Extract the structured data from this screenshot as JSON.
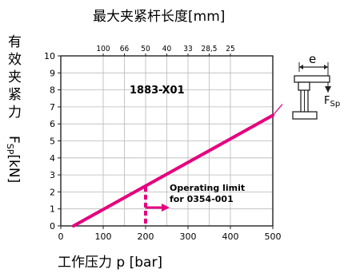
{
  "chart_data": {
    "type": "line",
    "title": "1883-X01",
    "top_axis_label": "最大夹紧杆长度[mm]",
    "xlabel": "工作压力 p [bar]",
    "ylabel_chars": [
      "有",
      "效",
      "夹",
      "紧",
      "力"
    ],
    "ylabel_tail": "F",
    "ylabel_sub": "SP",
    "ylabel_unit": "[kN]",
    "xlim": [
      0,
      500
    ],
    "ylim": [
      0,
      10
    ],
    "x_ticks": [
      "0",
      "100",
      "200",
      "300",
      "400",
      "500"
    ],
    "y_ticks": [
      "0",
      "1",
      "2",
      "3",
      "4",
      "5",
      "6",
      "7",
      "8",
      "9",
      "10"
    ],
    "top_ticks": [
      "100",
      "66",
      "50",
      "40",
      "33",
      "28,5",
      "25"
    ],
    "top_tick_x": [
      100,
      150,
      200,
      250,
      300,
      350,
      400
    ],
    "grid": true,
    "series": [
      {
        "x": [
          30,
          500
        ],
        "y": [
          0,
          6.5
        ],
        "color": "#e5007e"
      }
    ],
    "limit_line": {
      "x": 200,
      "y_from": 0,
      "y_to": 2.3,
      "color": "#e5007e"
    },
    "annotation": {
      "lines": [
        "Operating limit",
        "for 0354-001"
      ]
    },
    "inset": {
      "dim_label": "e",
      "force_label": "F",
      "force_sub": "Sp"
    }
  }
}
